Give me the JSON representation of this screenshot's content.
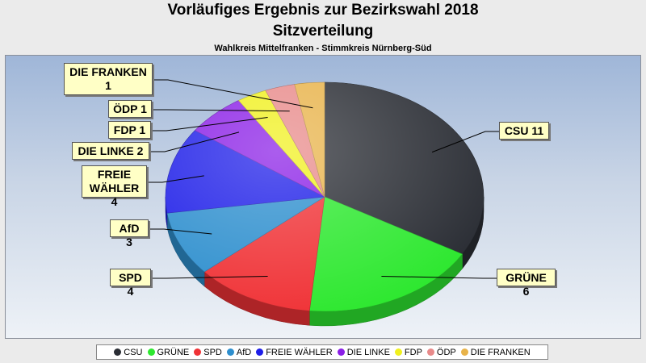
{
  "chart_data": {
    "type": "pie",
    "title": "Vorläufiges Ergebnis zur Bezirkswahl 2018",
    "subtitle": "Sitzverteilung",
    "caption": "Wahlkreis Mittelfranken - Stimmkreis Nürnberg-Süd",
    "categories": [
      "CSU",
      "GRÜNE",
      "SPD",
      "AfD",
      "FREIE WÄHLER",
      "DIE LINKE",
      "FDP",
      "ÖDP",
      "DIE FRANKEN"
    ],
    "values": [
      11,
      6,
      4,
      3,
      4,
      2,
      1,
      1,
      1
    ],
    "colors": [
      "#2b2e35",
      "#2ee830",
      "#f03236",
      "#2e8fce",
      "#1e1ee8",
      "#8a1ee6",
      "#f0f01e",
      "#e88a8a",
      "#e8b34a"
    ],
    "data_labels": [
      "CSU 11",
      "GRÜNE 6",
      "SPD 4",
      "AfD 3",
      "FREIE\nWÄHLER 4",
      "DIE LINKE 2",
      "FDP 1",
      "ÖDP 1",
      "DIE FRANKEN\n1"
    ],
    "legend_position": "bottom",
    "style": "3d-pie"
  }
}
